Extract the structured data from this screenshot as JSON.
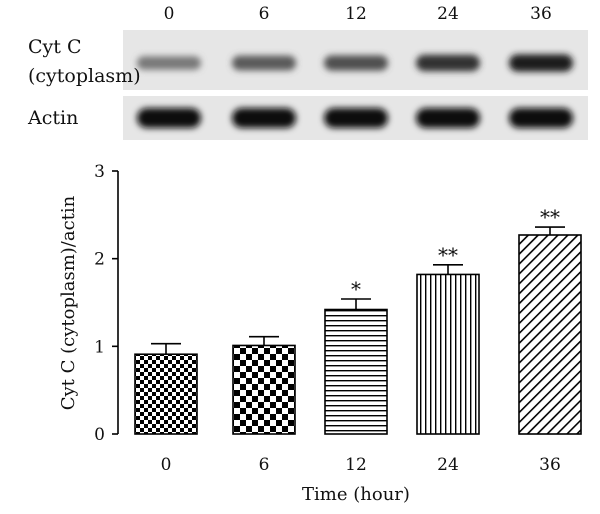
{
  "blot": {
    "lane_labels": [
      "0",
      "6",
      "12",
      "24",
      "36"
    ],
    "rows": [
      {
        "label_lines": [
          "Cyt C",
          "(cytoplasm)"
        ],
        "band_intensity": [
          0.45,
          0.6,
          0.65,
          0.8,
          0.9
        ]
      },
      {
        "label_lines": [
          "Actin"
        ],
        "band_intensity": [
          1.0,
          1.0,
          1.0,
          1.0,
          1.0
        ]
      }
    ]
  },
  "chart_data": {
    "type": "bar",
    "categories": [
      "0",
      "6",
      "12",
      "24",
      "36"
    ],
    "values": [
      0.91,
      1.01,
      1.42,
      1.82,
      2.27
    ],
    "errors": [
      0.12,
      0.1,
      0.12,
      0.11,
      0.09
    ],
    "significance": [
      "",
      "",
      "*",
      "**",
      "**"
    ],
    "patterns": [
      "checker-small",
      "checker-large",
      "horizontal-lines",
      "vertical-lines",
      "diagonal-lines"
    ],
    "xlabel": "Time (hour)",
    "ylabel": "Cyt C (cytoplasm)/actin",
    "ylim": [
      0,
      3
    ],
    "yticks": [
      0,
      1,
      2,
      3
    ],
    "grid": false,
    "legend": "none"
  }
}
